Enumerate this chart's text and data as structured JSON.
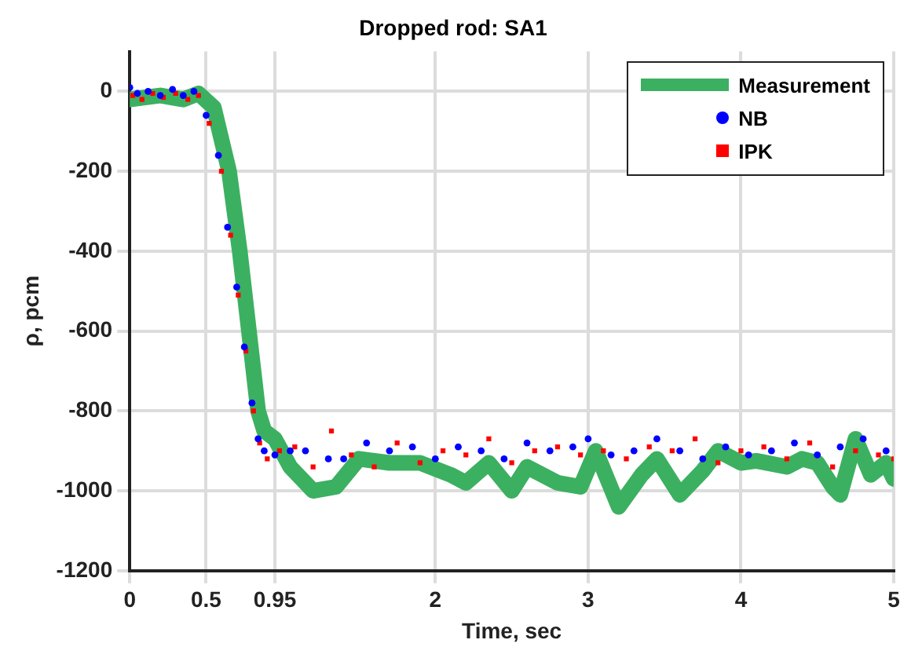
{
  "chart_data": {
    "type": "line",
    "title": "Dropped rod: SA1",
    "xlabel": "Time, sec",
    "ylabel": "ρ, pcm",
    "xlim": [
      0,
      5
    ],
    "xticks": [
      0,
      0.5,
      0.95,
      2,
      3,
      4,
      5
    ],
    "ylim": [
      -1200,
      100
    ],
    "yticks": [
      -1200,
      -1000,
      -800,
      -600,
      -400,
      -200,
      0
    ],
    "grid": true,
    "legend": "top right",
    "series": [
      {
        "name": "Measurement",
        "color": "#3cb061",
        "x": [
          0,
          0.2,
          0.35,
          0.45,
          0.55,
          0.65,
          0.72,
          0.78,
          0.84,
          0.88,
          0.95,
          1.05,
          1.2,
          1.35,
          1.5,
          1.7,
          1.9,
          2.1,
          2.2,
          2.35,
          2.5,
          2.6,
          2.8,
          2.95,
          3.05,
          3.2,
          3.35,
          3.45,
          3.6,
          3.75,
          3.85,
          4.0,
          4.1,
          4.3,
          4.4,
          4.5,
          4.6,
          4.65,
          4.75,
          4.85,
          4.95,
          5.0
        ],
        "values": [
          -20,
          -10,
          -20,
          -5,
          -40,
          -200,
          -400,
          -600,
          -800,
          -850,
          -870,
          -940,
          -1000,
          -990,
          -920,
          -930,
          -930,
          -960,
          -980,
          -930,
          -1000,
          -940,
          -980,
          -990,
          -900,
          -1040,
          -960,
          -920,
          -1010,
          -950,
          -900,
          -930,
          -925,
          -940,
          -920,
          -930,
          -990,
          -1010,
          -870,
          -960,
          -930,
          -970
        ]
      },
      {
        "name": "NB",
        "type": "scatter",
        "marker": "circle",
        "color": "#0000ff",
        "x": [
          0,
          0.05,
          0.12,
          0.2,
          0.28,
          0.35,
          0.42,
          0.5,
          0.58,
          0.64,
          0.7,
          0.75,
          0.8,
          0.84,
          0.88,
          0.95,
          1.05,
          1.15,
          1.3,
          1.4,
          1.55,
          1.7,
          1.85,
          2.0,
          2.15,
          2.3,
          2.45,
          2.6,
          2.75,
          2.9,
          3.0,
          3.15,
          3.3,
          3.45,
          3.6,
          3.75,
          3.9,
          4.05,
          4.2,
          4.35,
          4.5,
          4.65,
          4.8,
          4.95
        ],
        "values": [
          10,
          -5,
          0,
          -10,
          5,
          -10,
          0,
          -60,
          -160,
          -340,
          -490,
          -640,
          -780,
          -870,
          -900,
          -910,
          -900,
          -900,
          -920,
          -920,
          -880,
          -900,
          -890,
          -920,
          -890,
          -900,
          -920,
          -880,
          -900,
          -890,
          -870,
          -910,
          -900,
          -870,
          -900,
          -920,
          -890,
          -910,
          -900,
          -880,
          -910,
          -890,
          -870,
          -900
        ]
      },
      {
        "name": "IPK",
        "type": "scatter",
        "marker": "square",
        "color": "#ff0000",
        "x": [
          0.02,
          0.08,
          0.15,
          0.22,
          0.3,
          0.38,
          0.45,
          0.52,
          0.6,
          0.66,
          0.71,
          0.76,
          0.81,
          0.85,
          0.9,
          0.98,
          1.08,
          1.2,
          1.32,
          1.45,
          1.6,
          1.75,
          1.9,
          2.05,
          2.2,
          2.35,
          2.5,
          2.65,
          2.8,
          2.95,
          3.1,
          3.25,
          3.4,
          3.55,
          3.7,
          3.85,
          4.0,
          4.15,
          4.3,
          4.45,
          4.6,
          4.75,
          4.9,
          5.0
        ],
        "values": [
          -10,
          -20,
          -5,
          -15,
          -5,
          -20,
          -10,
          -80,
          -200,
          -360,
          -510,
          -650,
          -800,
          -880,
          -920,
          -900,
          -890,
          -940,
          -850,
          -910,
          -940,
          -880,
          -930,
          -900,
          -910,
          -870,
          -930,
          -900,
          -890,
          -910,
          -900,
          -920,
          -890,
          -900,
          -870,
          -930,
          -900,
          -890,
          -920,
          -880,
          -940,
          -900,
          -910,
          -920
        ]
      }
    ]
  }
}
